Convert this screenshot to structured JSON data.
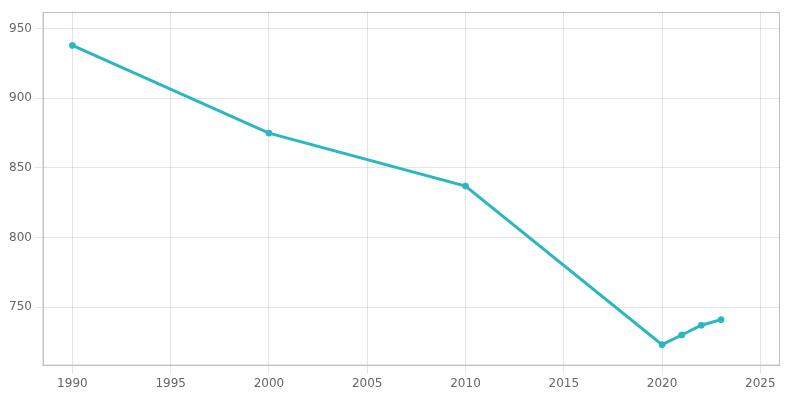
{
  "chart_data": {
    "type": "line",
    "x": [
      1990,
      2000,
      2010,
      2020,
      2021,
      2022,
      2023
    ],
    "values": [
      938,
      875,
      837,
      723,
      730,
      737,
      741
    ],
    "color": "#29b8c2",
    "marker": "o",
    "xlim": [
      1988.5,
      2026
    ],
    "ylim": [
      708,
      962
    ],
    "xticks": [
      1990,
      1995,
      2000,
      2005,
      2010,
      2015,
      2020,
      2025
    ],
    "yticks": [
      750,
      800,
      850,
      900,
      950
    ],
    "grid": true
  }
}
